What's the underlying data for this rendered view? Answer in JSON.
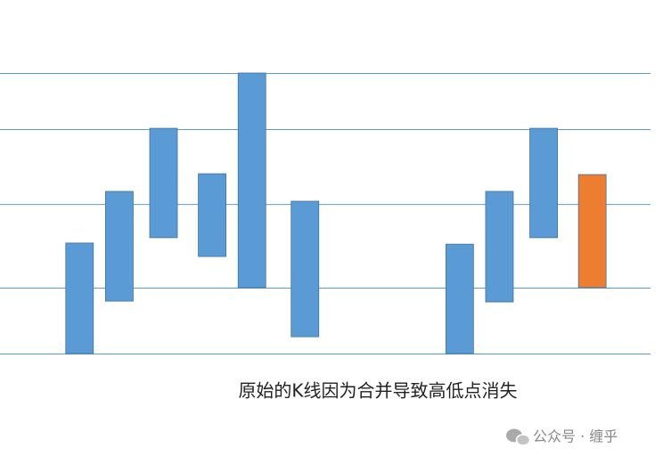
{
  "chart_data": {
    "type": "floating-bar",
    "title": "原始的K线因为合并导致高低点消失",
    "x": [
      1.8,
      2.7,
      3.7,
      4.8,
      5.7,
      6.9,
      10.4,
      11.3,
      12.3,
      13.4
    ],
    "lows": [
      0,
      18.7,
      41.3,
      34.6,
      23.5,
      6.0,
      0,
      18.4,
      41.3,
      23.5
    ],
    "highs": [
      39.4,
      57.8,
      80.3,
      64.1,
      100,
      54.3,
      39.0,
      57.8,
      80.3,
      63.8
    ],
    "colors": [
      "#5b9bd5",
      "#5b9bd5",
      "#5b9bd5",
      "#5b9bd5",
      "#5b9bd5",
      "#5b9bd5",
      "#5b9bd5",
      "#5b9bd5",
      "#5b9bd5",
      "#ed7d31"
    ],
    "xlim": [
      0,
      15
    ],
    "ylim": [
      0,
      100
    ],
    "yticks": [
      0,
      23.5,
      53.3,
      80,
      100
    ],
    "grid": true
  },
  "watermark": "公众号 · 缠乎"
}
